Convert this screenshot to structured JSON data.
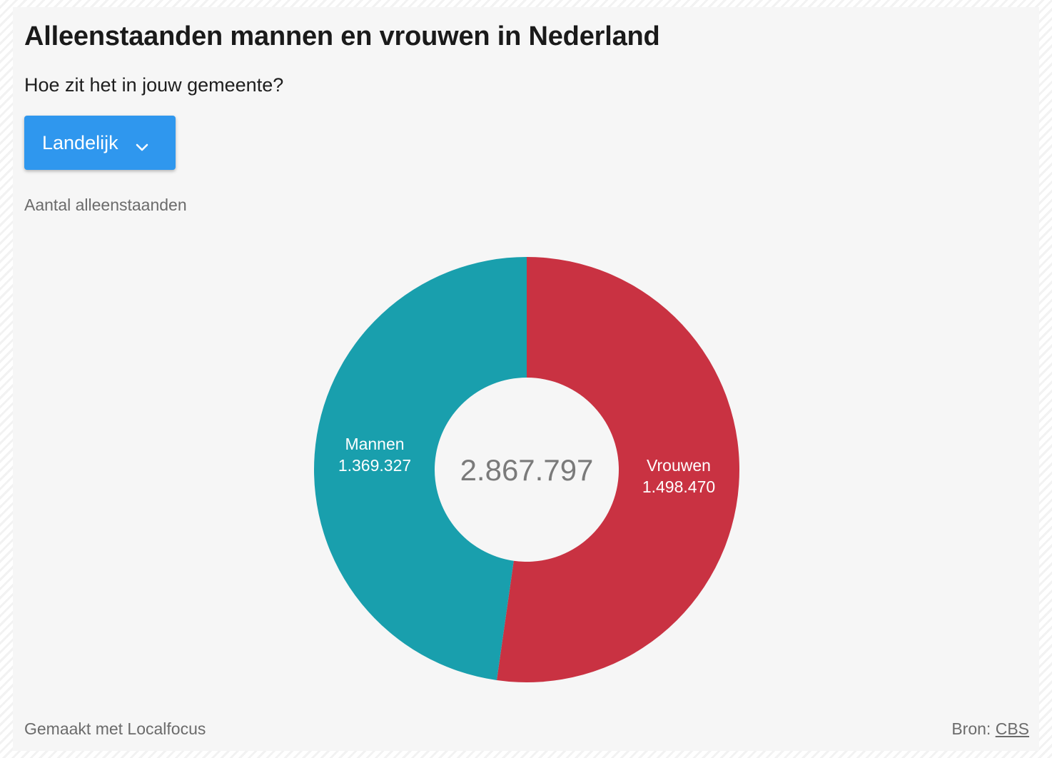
{
  "header": {
    "title": "Alleenstaanden mannen en vrouwen in Nederland",
    "subtitle": "Hoe zit het in jouw gemeente?"
  },
  "dropdown": {
    "selected": "Landelijk",
    "icon": "chevron-down-icon"
  },
  "chart_label": "Aantal alleenstaanden",
  "chart_data": {
    "type": "pie",
    "variant": "donut",
    "total_label": "2.867.797",
    "slices": [
      {
        "name": "Vrouwen",
        "value": 1498470,
        "value_label": "1.498.470",
        "color": "#c93242"
      },
      {
        "name": "Mannen",
        "value": 1369327,
        "value_label": "1.369.327",
        "color": "#199fad"
      }
    ]
  },
  "footer": {
    "credit": "Gemaakt met Localfocus",
    "source_prefix": "Bron:",
    "source_link": "CBS"
  },
  "colors": {
    "accent": "#2f97ee",
    "background": "#f6f6f6"
  }
}
